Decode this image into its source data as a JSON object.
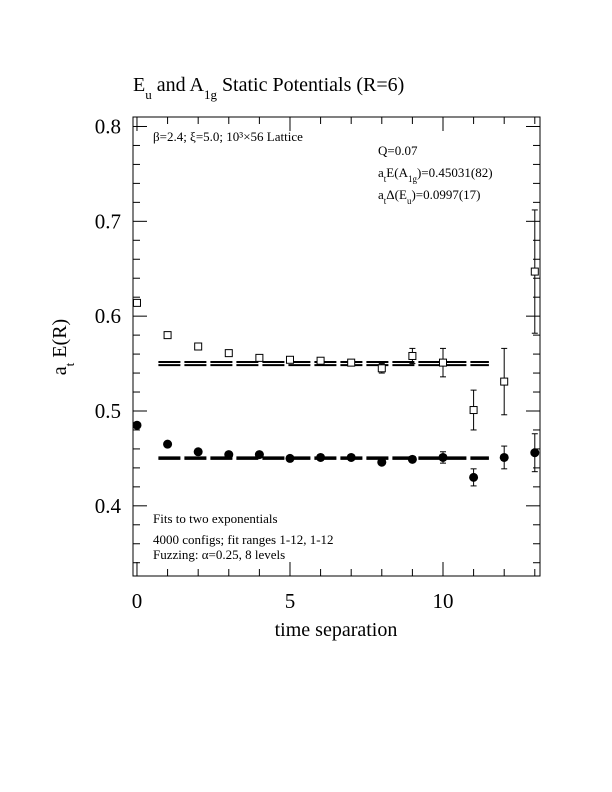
{
  "chart_data": {
    "type": "scatter",
    "title": [
      "E",
      "u",
      " and A",
      "1g",
      " Static Potentials (R=6)"
    ],
    "xlabel": "time separation",
    "ylabel": [
      "a",
      "t",
      " E(R)"
    ],
    "annotations": [
      {
        "text": [
          "β=2.4; ξ=5.0; 10³×56 Lattice"
        ]
      },
      {
        "text": [
          "Q=0.07"
        ]
      },
      {
        "text": [
          "a",
          "t",
          "E(A",
          "1g",
          ")=0.45031(82)"
        ]
      },
      {
        "text": [
          "a",
          "t",
          "Δ(E",
          "u",
          ")=0.0997(17)"
        ]
      },
      {
        "text": [
          "Fits to two exponentials"
        ]
      },
      {
        "text": [
          "4000 configs; fit ranges 1-12, 1-12"
        ]
      },
      {
        "text": [
          "Fuzzing: α=0.25, 8 levels"
        ]
      }
    ],
    "x": [
      0,
      1,
      2,
      3,
      4,
      5,
      6,
      7,
      8,
      9,
      10,
      11,
      12,
      13
    ],
    "series": [
      {
        "marker": "open-square",
        "color": "#000000",
        "values": [
          0.614,
          0.58,
          0.568,
          0.561,
          0.556,
          0.554,
          0.553,
          0.551,
          0.545,
          0.558,
          0.551,
          0.501,
          0.531,
          0.647
        ],
        "errors": [
          0.002,
          0.001,
          0.002,
          0.002,
          0.002,
          0.002,
          0.003,
          0.003,
          0.005,
          0.008,
          0.015,
          0.021,
          0.035,
          0.065
        ]
      },
      {
        "marker": "filled-circle",
        "color": "#000000",
        "values": [
          0.485,
          0.465,
          0.457,
          0.454,
          0.454,
          0.45,
          0.451,
          0.451,
          0.446,
          0.449,
          0.451,
          0.43,
          0.451,
          0.456
        ],
        "errors": [
          0.001,
          0.001,
          0.001,
          0.001,
          0.002,
          0.002,
          0.002,
          0.002,
          0.002,
          0.003,
          0.006,
          0.009,
          0.012,
          0.02
        ]
      }
    ],
    "fits": [
      {
        "value": 0.55,
        "error": 0.0017,
        "x": [
          0.7,
          11.5
        ]
      },
      {
        "value": 0.45031,
        "error": 0.00082,
        "x": [
          0.7,
          11.5
        ]
      }
    ],
    "xlim": [
      -0.13,
      13.17
    ],
    "ylim": [
      0.326,
      0.81
    ],
    "xticks": [
      0,
      5,
      10
    ],
    "yticks": [
      0.4,
      0.5,
      0.6,
      0.7,
      0.8
    ],
    "xminorticks": [
      1,
      2,
      3,
      4,
      6,
      7,
      8,
      9,
      11,
      12,
      13
    ],
    "yminorticks": [
      0.34,
      0.36,
      0.38,
      0.42,
      0.44,
      0.46,
      0.48,
      0.52,
      0.54,
      0.56,
      0.58,
      0.62,
      0.64,
      0.66,
      0.68,
      0.72,
      0.74,
      0.76,
      0.78
    ]
  }
}
